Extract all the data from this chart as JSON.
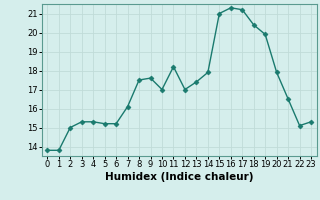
{
  "x": [
    0,
    1,
    2,
    3,
    4,
    5,
    6,
    7,
    8,
    9,
    10,
    11,
    12,
    13,
    14,
    15,
    16,
    17,
    18,
    19,
    20,
    21,
    22,
    23
  ],
  "y": [
    13.8,
    13.8,
    15.0,
    15.3,
    15.3,
    15.2,
    15.2,
    16.1,
    17.5,
    17.6,
    17.0,
    18.2,
    17.0,
    17.4,
    17.9,
    21.0,
    21.3,
    21.2,
    20.4,
    19.9,
    17.9,
    16.5,
    15.1,
    15.3
  ],
  "line_color": "#1a7a6e",
  "marker": "D",
  "marker_size": 2.5,
  "bg_color": "#d5eeec",
  "grid_color": "#c0dbd8",
  "xlabel": "Humidex (Indice chaleur)",
  "ylim": [
    13.5,
    21.5
  ],
  "xlim": [
    -0.5,
    23.5
  ],
  "yticks": [
    14,
    15,
    16,
    17,
    18,
    19,
    20,
    21
  ],
  "xticks": [
    0,
    1,
    2,
    3,
    4,
    5,
    6,
    7,
    8,
    9,
    10,
    11,
    12,
    13,
    14,
    15,
    16,
    17,
    18,
    19,
    20,
    21,
    22,
    23
  ],
  "tick_fontsize": 6,
  "xlabel_fontsize": 7.5,
  "line_width": 1.0,
  "spine_color": "#5a9a90"
}
